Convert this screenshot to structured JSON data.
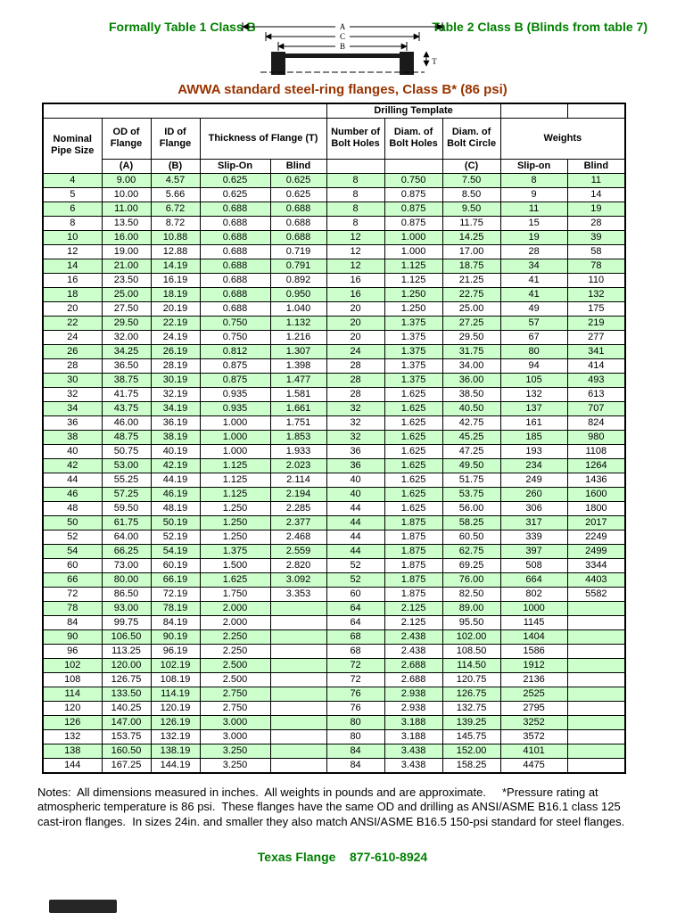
{
  "header": {
    "left_title": "Formally Table 1 Class B",
    "right_title": "Table 2 Class B (Blinds from table 7)",
    "main_title": "AWWA standard steel-ring flanges, Class B* (86 psi)"
  },
  "diagram": {
    "labels": {
      "a": "A",
      "c": "C",
      "b": "B",
      "t": "T"
    }
  },
  "colors": {
    "heading_green": "#008000",
    "title_brown": "#993300",
    "row_green": "#ccffcc"
  },
  "table": {
    "group_header": {
      "drilling": "Drilling Template"
    },
    "columns": {
      "nominal": "Nominal Pipe Size",
      "od": "OD of Flange",
      "id": "ID of Flange",
      "thickness": "Thickness of Flange (T)",
      "num_holes": "Number of Bolt Holes",
      "diam_holes": "Diam. of Bolt Holes",
      "diam_circle": "Diam. of Bolt Circle",
      "weights": "Weights",
      "sub_a": "(A)",
      "sub_b": "(B)",
      "slip_on": "Slip-On",
      "blind": "Blind",
      "sub_c": "(C)",
      "weights_slip": "Slip-on",
      "weights_blind": "Blind"
    },
    "rows": [
      [
        "4",
        "9.00",
        "4.57",
        "0.625",
        "0.625",
        "8",
        "0.750",
        "7.50",
        "8",
        "11"
      ],
      [
        "5",
        "10.00",
        "5.66",
        "0.625",
        "0.625",
        "8",
        "0.875",
        "8.50",
        "9",
        "14"
      ],
      [
        "6",
        "11.00",
        "6.72",
        "0.688",
        "0.688",
        "8",
        "0.875",
        "9.50",
        "11",
        "19"
      ],
      [
        "8",
        "13.50",
        "8.72",
        "0.688",
        "0.688",
        "8",
        "0.875",
        "11.75",
        "15",
        "28"
      ],
      [
        "10",
        "16.00",
        "10.88",
        "0.688",
        "0.688",
        "12",
        "1.000",
        "14.25",
        "19",
        "39"
      ],
      [
        "12",
        "19.00",
        "12.88",
        "0.688",
        "0.719",
        "12",
        "1.000",
        "17.00",
        "28",
        "58"
      ],
      [
        "14",
        "21.00",
        "14.19",
        "0.688",
        "0.791",
        "12",
        "1.125",
        "18.75",
        "34",
        "78"
      ],
      [
        "16",
        "23.50",
        "16.19",
        "0.688",
        "0.892",
        "16",
        "1.125",
        "21.25",
        "41",
        "110"
      ],
      [
        "18",
        "25.00",
        "18.19",
        "0.688",
        "0.950",
        "16",
        "1.250",
        "22.75",
        "41",
        "132"
      ],
      [
        "20",
        "27.50",
        "20.19",
        "0.688",
        "1.040",
        "20",
        "1.250",
        "25.00",
        "49",
        "175"
      ],
      [
        "22",
        "29.50",
        "22.19",
        "0.750",
        "1.132",
        "20",
        "1.375",
        "27.25",
        "57",
        "219"
      ],
      [
        "24",
        "32.00",
        "24.19",
        "0.750",
        "1.216",
        "20",
        "1.375",
        "29.50",
        "67",
        "277"
      ],
      [
        "26",
        "34.25",
        "26.19",
        "0.812",
        "1.307",
        "24",
        "1.375",
        "31.75",
        "80",
        "341"
      ],
      [
        "28",
        "36.50",
        "28.19",
        "0.875",
        "1.398",
        "28",
        "1.375",
        "34.00",
        "94",
        "414"
      ],
      [
        "30",
        "38.75",
        "30.19",
        "0.875",
        "1.477",
        "28",
        "1.375",
        "36.00",
        "105",
        "493"
      ],
      [
        "32",
        "41.75",
        "32.19",
        "0.935",
        "1.581",
        "28",
        "1.625",
        "38.50",
        "132",
        "613"
      ],
      [
        "34",
        "43.75",
        "34.19",
        "0.935",
        "1.661",
        "32",
        "1.625",
        "40.50",
        "137",
        "707"
      ],
      [
        "36",
        "46.00",
        "36.19",
        "1.000",
        "1.751",
        "32",
        "1.625",
        "42.75",
        "161",
        "824"
      ],
      [
        "38",
        "48.75",
        "38.19",
        "1.000",
        "1.853",
        "32",
        "1.625",
        "45.25",
        "185",
        "980"
      ],
      [
        "40",
        "50.75",
        "40.19",
        "1.000",
        "1.933",
        "36",
        "1.625",
        "47.25",
        "193",
        "1108"
      ],
      [
        "42",
        "53.00",
        "42.19",
        "1.125",
        "2.023",
        "36",
        "1.625",
        "49.50",
        "234",
        "1264"
      ],
      [
        "44",
        "55.25",
        "44.19",
        "1.125",
        "2.114",
        "40",
        "1.625",
        "51.75",
        "249",
        "1436"
      ],
      [
        "46",
        "57.25",
        "46.19",
        "1.125",
        "2.194",
        "40",
        "1.625",
        "53.75",
        "260",
        "1600"
      ],
      [
        "48",
        "59.50",
        "48.19",
        "1.250",
        "2.285",
        "44",
        "1.625",
        "56.00",
        "306",
        "1800"
      ],
      [
        "50",
        "61.75",
        "50.19",
        "1.250",
        "2.377",
        "44",
        "1.875",
        "58.25",
        "317",
        "2017"
      ],
      [
        "52",
        "64.00",
        "52.19",
        "1.250",
        "2.468",
        "44",
        "1.875",
        "60.50",
        "339",
        "2249"
      ],
      [
        "54",
        "66.25",
        "54.19",
        "1.375",
        "2.559",
        "44",
        "1.875",
        "62.75",
        "397",
        "2499"
      ],
      [
        "60",
        "73.00",
        "60.19",
        "1.500",
        "2.820",
        "52",
        "1.875",
        "69.25",
        "508",
        "3344"
      ],
      [
        "66",
        "80.00",
        "66.19",
        "1.625",
        "3.092",
        "52",
        "1.875",
        "76.00",
        "664",
        "4403"
      ],
      [
        "72",
        "86.50",
        "72.19",
        "1.750",
        "3.353",
        "60",
        "1.875",
        "82.50",
        "802",
        "5582"
      ],
      [
        "78",
        "93.00",
        "78.19",
        "2.000",
        "",
        "64",
        "2.125",
        "89.00",
        "1000",
        ""
      ],
      [
        "84",
        "99.75",
        "84.19",
        "2.000",
        "",
        "64",
        "2.125",
        "95.50",
        "1145",
        ""
      ],
      [
        "90",
        "106.50",
        "90.19",
        "2.250",
        "",
        "68",
        "2.438",
        "102.00",
        "1404",
        ""
      ],
      [
        "96",
        "113.25",
        "96.19",
        "2.250",
        "",
        "68",
        "2.438",
        "108.50",
        "1586",
        ""
      ],
      [
        "102",
        "120.00",
        "102.19",
        "2.500",
        "",
        "72",
        "2.688",
        "114.50",
        "1912",
        ""
      ],
      [
        "108",
        "126.75",
        "108.19",
        "2.500",
        "",
        "72",
        "2.688",
        "120.75",
        "2136",
        ""
      ],
      [
        "114",
        "133.50",
        "114.19",
        "2.750",
        "",
        "76",
        "2.938",
        "126.75",
        "2525",
        ""
      ],
      [
        "120",
        "140.25",
        "120.19",
        "2.750",
        "",
        "76",
        "2.938",
        "132.75",
        "2795",
        ""
      ],
      [
        "126",
        "147.00",
        "126.19",
        "3.000",
        "",
        "80",
        "3.188",
        "139.25",
        "3252",
        ""
      ],
      [
        "132",
        "153.75",
        "132.19",
        "3.000",
        "",
        "80",
        "3.188",
        "145.75",
        "3572",
        ""
      ],
      [
        "138",
        "160.50",
        "138.19",
        "3.250",
        "",
        "84",
        "3.438",
        "152.00",
        "4101",
        ""
      ],
      [
        "144",
        "167.25",
        "144.19",
        "3.250",
        "",
        "84",
        "3.438",
        "158.25",
        "4475",
        ""
      ]
    ]
  },
  "notes": "Notes:  All dimensions measured in inches.  All weights in pounds and are approximate.     *Pressure rating at\natmospheric temperature is 86 psi.  These flanges have the same OD and drilling as ANSI/ASME B16.1 class 125\ncast-iron flanges.  In sizes 24in. and smaller they also match ANSI/ASME B16.5 150-psi standard for steel flanges.",
  "footer": "Texas Flange    877-610-8924"
}
